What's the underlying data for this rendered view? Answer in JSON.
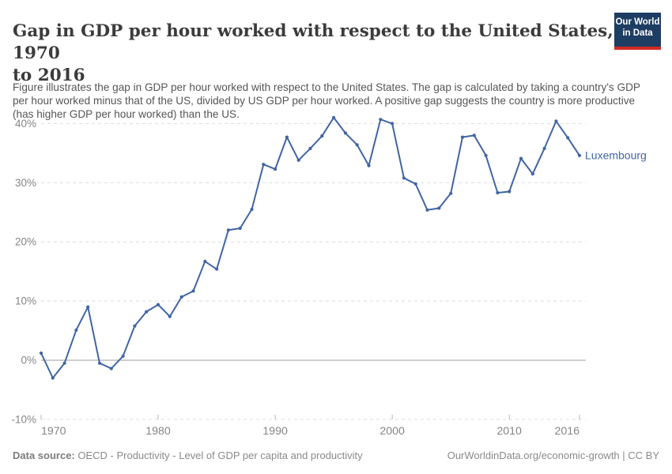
{
  "header": {
    "title_lines": [
      "Gap in GDP per hour worked with respect to the United States, 1970",
      "to 2016"
    ],
    "subtitle": "Figure illustrates the gap in GDP per hour worked with respect to the United States. The gap is calculated by taking a country's GDP per hour worked minus that of the US, divided by US GDP per hour worked. A positive gap suggests the country is more productive (has higher GDP per hour worked) than the US.",
    "logo": {
      "line1": "Our World",
      "line2": "in Data",
      "bg_color": "#1d3d63",
      "stripe_color": "#d02b22"
    }
  },
  "footer": {
    "data_source_label": "Data source:",
    "data_source_value": " OECD - Productivity - Level of GDP per capita and productivity",
    "license": "OurWorldinData.org/economic-growth | CC BY"
  },
  "chart_data": {
    "type": "line",
    "title": "Gap in GDP per hour worked with respect to the United States, 1970 to 2016",
    "xlabel": "",
    "ylabel": "",
    "grid": "horizontal-dashed",
    "legend_position": "end-of-line-label",
    "xlim": [
      1970,
      2016
    ],
    "ylim": [
      -10,
      42.2
    ],
    "x_ticks": [
      1970,
      1980,
      1990,
      2000,
      2010,
      2016
    ],
    "y_ticks": [
      -10,
      0,
      10,
      20,
      30,
      40
    ],
    "y_tick_suffix": "%",
    "colors": {
      "line": "#4165a3",
      "grid": "#dcdcdc",
      "zero_line": "#9e9e9e",
      "tick": "#b8b8b8",
      "axis_text": "#858585"
    },
    "series": [
      {
        "name": "Luxembourg",
        "color": "#4165a3",
        "x": [
          1970,
          1971,
          1972,
          1973,
          1974,
          1975,
          1976,
          1977,
          1978,
          1979,
          1980,
          1981,
          1982,
          1983,
          1984,
          1985,
          1986,
          1987,
          1988,
          1989,
          1990,
          1991,
          1992,
          1993,
          1994,
          1995,
          1996,
          1997,
          1998,
          1999,
          2000,
          2001,
          2002,
          2003,
          2004,
          2005,
          2006,
          2007,
          2008,
          2009,
          2010,
          2011,
          2012,
          2013,
          2014,
          2015,
          2016
        ],
        "values": [
          1.2,
          -3.0,
          -0.5,
          5.1,
          9.0,
          -0.5,
          -1.4,
          0.7,
          5.8,
          8.2,
          9.4,
          7.4,
          10.7,
          11.7,
          16.7,
          15.4,
          22.0,
          22.3,
          25.5,
          33.1,
          32.3,
          37.7,
          33.8,
          35.8,
          37.9,
          41.0,
          38.4,
          36.4,
          32.9,
          40.7,
          40.0,
          30.8,
          29.8,
          25.4,
          25.7,
          28.2,
          37.7,
          38.0,
          34.6,
          28.3,
          28.5,
          34.1,
          31.5,
          35.8,
          40.4,
          37.6,
          34.6
        ]
      }
    ]
  }
}
